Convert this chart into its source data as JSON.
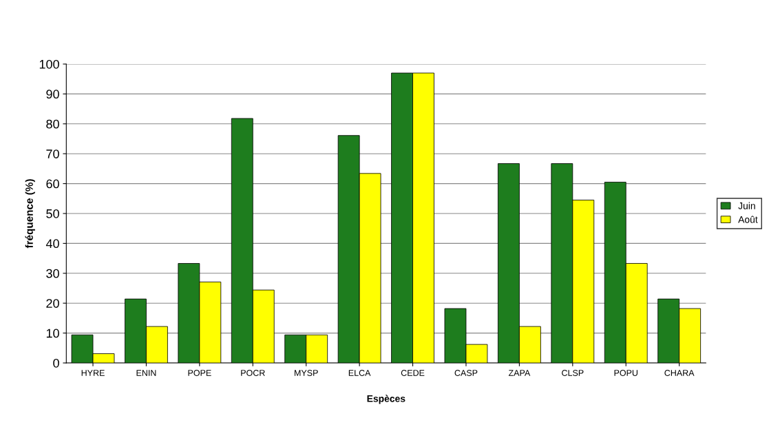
{
  "chart_data": {
    "type": "bar",
    "xlabel": "Espèces",
    "ylabel": "fréquence (%)",
    "categories": [
      "HYRE",
      "ENIN",
      "POPE",
      "POCR",
      "MYSP",
      "ELCA",
      "CEDE",
      "CASP",
      "ZAPA",
      "CLSP",
      "POPU",
      "CHARA"
    ],
    "series": [
      {
        "name": "Juin",
        "color": "#1e7d1e",
        "values": [
          9.4,
          21.4,
          33.3,
          81.8,
          9.4,
          76.1,
          97.0,
          18.2,
          66.7,
          66.7,
          60.5,
          21.4
        ]
      },
      {
        "name": "Août",
        "color": "#ffff00",
        "values": [
          3.1,
          12.2,
          27.1,
          24.4,
          9.4,
          63.4,
          97.0,
          6.2,
          12.2,
          54.5,
          33.3,
          18.2
        ]
      }
    ],
    "ylim": [
      0,
      100
    ],
    "yticks": [
      0,
      10,
      20,
      30,
      40,
      50,
      60,
      70,
      80,
      90,
      100
    ],
    "grid": "y",
    "legend": "right"
  }
}
